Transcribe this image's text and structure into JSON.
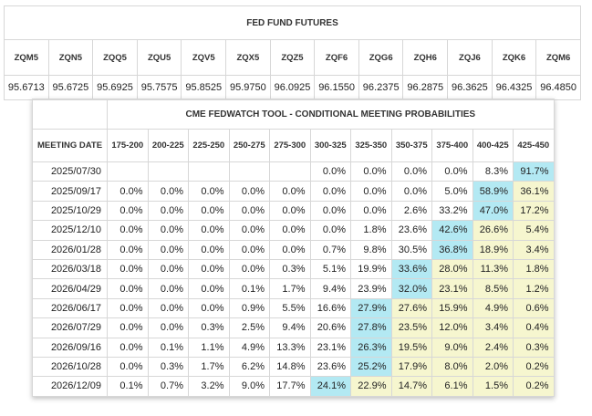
{
  "futures": {
    "title": "FED FUND FUTURES",
    "contracts": [
      "ZQM5",
      "ZQN5",
      "ZQQ5",
      "ZQU5",
      "ZQV5",
      "ZQX5",
      "ZQZ5",
      "ZQF6",
      "ZQG6",
      "ZQH6",
      "ZQJ6",
      "ZQK6",
      "ZQM6"
    ],
    "prices": [
      "95.6713",
      "95.6725",
      "95.6925",
      "95.7575",
      "95.8525",
      "95.9750",
      "96.0925",
      "96.1550",
      "96.2375",
      "96.2875",
      "96.3625",
      "96.4325",
      "96.4850"
    ]
  },
  "fedwatch": {
    "title": "CME FEDWATCH TOOL - CONDITIONAL MEETING PROBABILITIES",
    "date_header": "MEETING DATE",
    "ranges": [
      "175-200",
      "200-225",
      "225-250",
      "250-275",
      "275-300",
      "300-325",
      "325-350",
      "350-375",
      "375-400",
      "400-425",
      "425-450"
    ],
    "rows": [
      {
        "date": "2025/07/30",
        "cells": [
          "",
          "",
          "",
          "",
          "",
          "0.0%",
          "0.0%",
          "0.0%",
          "0.0%",
          "8.3%",
          "91.7%"
        ],
        "hi": 10
      },
      {
        "date": "2025/09/17",
        "cells": [
          "0.0%",
          "0.0%",
          "0.0%",
          "0.0%",
          "0.0%",
          "0.0%",
          "0.0%",
          "0.0%",
          "5.0%",
          "58.9%",
          "36.1%"
        ],
        "hi": 9
      },
      {
        "date": "2025/10/29",
        "cells": [
          "0.0%",
          "0.0%",
          "0.0%",
          "0.0%",
          "0.0%",
          "0.0%",
          "0.0%",
          "2.6%",
          "33.2%",
          "47.0%",
          "17.2%"
        ],
        "hi": 9
      },
      {
        "date": "2025/12/10",
        "cells": [
          "0.0%",
          "0.0%",
          "0.0%",
          "0.0%",
          "0.0%",
          "0.0%",
          "1.8%",
          "23.6%",
          "42.6%",
          "26.6%",
          "5.4%"
        ],
        "hi": 8
      },
      {
        "date": "2026/01/28",
        "cells": [
          "0.0%",
          "0.0%",
          "0.0%",
          "0.0%",
          "0.0%",
          "0.7%",
          "9.8%",
          "30.5%",
          "36.8%",
          "18.9%",
          "3.4%"
        ],
        "hi": 8
      },
      {
        "date": "2026/03/18",
        "cells": [
          "0.0%",
          "0.0%",
          "0.0%",
          "0.0%",
          "0.3%",
          "5.1%",
          "19.9%",
          "33.6%",
          "28.0%",
          "11.3%",
          "1.8%"
        ],
        "hi": 7
      },
      {
        "date": "2026/04/29",
        "cells": [
          "0.0%",
          "0.0%",
          "0.0%",
          "0.1%",
          "1.7%",
          "9.4%",
          "23.9%",
          "32.0%",
          "23.1%",
          "8.5%",
          "1.2%"
        ],
        "hi": 7
      },
      {
        "date": "2026/06/17",
        "cells": [
          "0.0%",
          "0.0%",
          "0.0%",
          "0.9%",
          "5.5%",
          "16.6%",
          "27.9%",
          "27.6%",
          "15.9%",
          "4.9%",
          "0.6%"
        ],
        "hi": 6
      },
      {
        "date": "2026/07/29",
        "cells": [
          "0.0%",
          "0.0%",
          "0.3%",
          "2.5%",
          "9.4%",
          "20.6%",
          "27.8%",
          "23.5%",
          "12.0%",
          "3.4%",
          "0.4%"
        ],
        "hi": 6
      },
      {
        "date": "2026/09/16",
        "cells": [
          "0.0%",
          "0.1%",
          "1.1%",
          "4.9%",
          "13.3%",
          "23.1%",
          "26.3%",
          "19.5%",
          "9.0%",
          "2.4%",
          "0.3%"
        ],
        "hi": 6
      },
      {
        "date": "2026/10/28",
        "cells": [
          "0.0%",
          "0.3%",
          "1.7%",
          "6.2%",
          "14.8%",
          "23.6%",
          "25.2%",
          "17.9%",
          "8.0%",
          "2.0%",
          "0.2%"
        ],
        "hi": 6
      },
      {
        "date": "2026/12/09",
        "cells": [
          "0.1%",
          "0.7%",
          "3.2%",
          "9.0%",
          "17.7%",
          "24.1%",
          "22.9%",
          "14.7%",
          "6.1%",
          "1.5%",
          "0.2%"
        ],
        "hi": 5
      }
    ],
    "colors": {
      "highlight": "#b3e9f3",
      "tint": "#f6f6cf"
    }
  }
}
